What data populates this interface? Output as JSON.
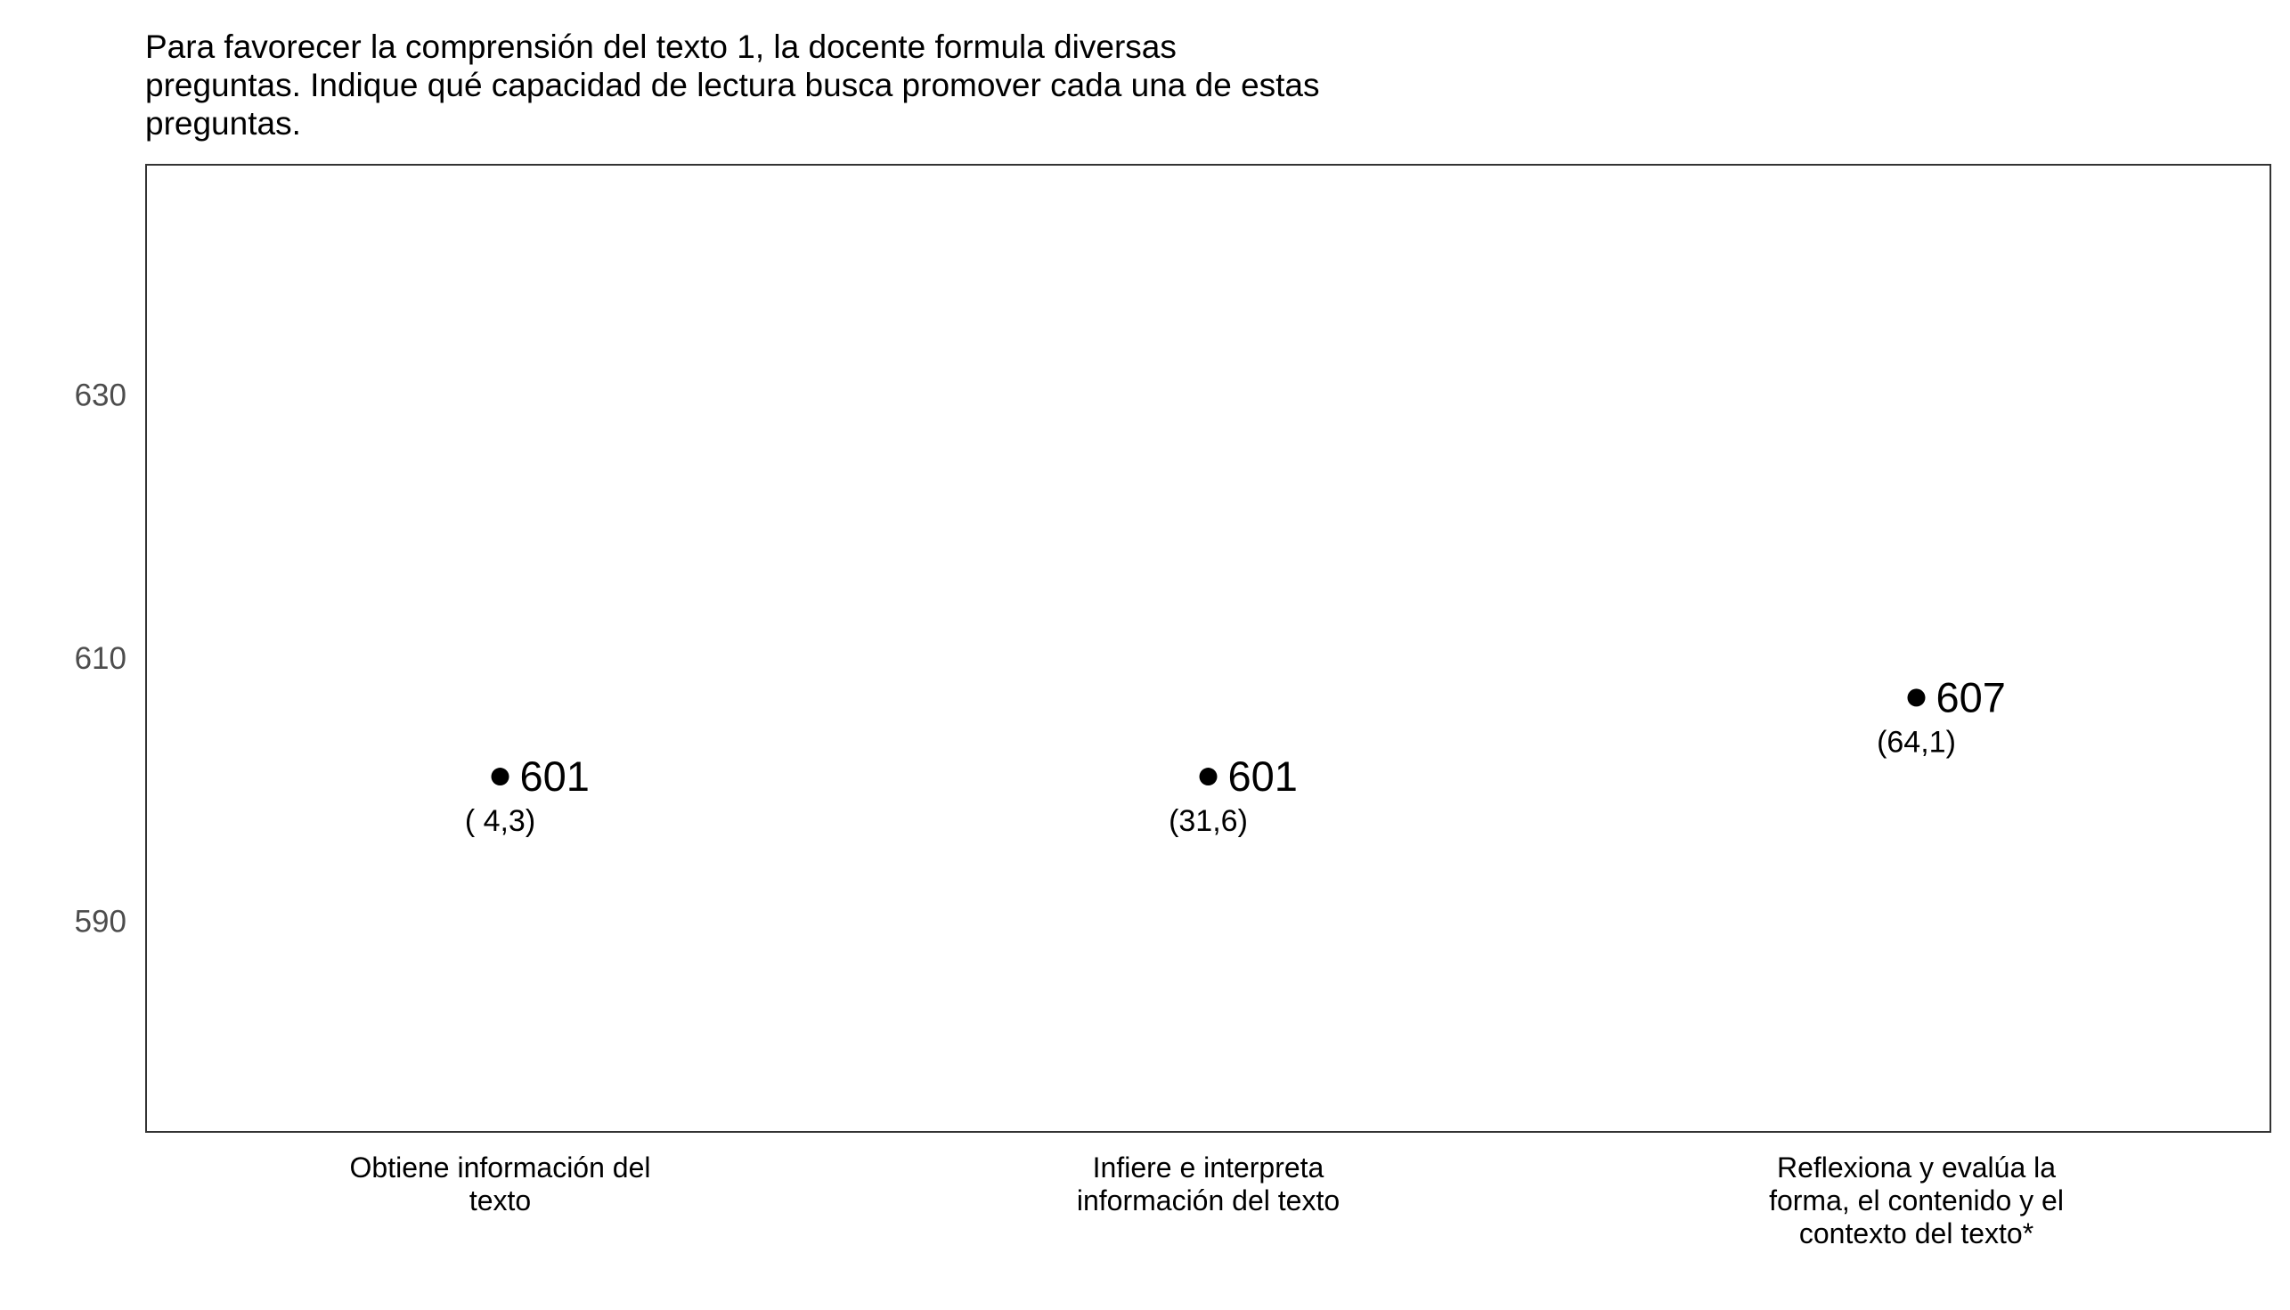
{
  "chart_data": {
    "type": "scatter",
    "title_lines": [
      "Para favorecer la comprensión del texto 1, la docente formula diversas",
      "preguntas. Indique qué capacidad de lectura busca promover cada una de estas",
      "preguntas."
    ],
    "categories": [
      [
        "Obtiene información del",
        "texto"
      ],
      [
        "Infiere e interpreta",
        "información del texto"
      ],
      [
        "Reflexiona y evalúa la",
        "forma, el contenido y el",
        "contexto del texto*"
      ]
    ],
    "values": [
      601,
      601,
      607
    ],
    "value_labels": [
      "601",
      "601",
      "607"
    ],
    "n_labels": [
      "( 4,3)",
      "(31,6)",
      "(64,1)"
    ],
    "y_ticks": [
      590,
      610,
      630
    ],
    "ylim": [
      574,
      647.5
    ],
    "grid": false,
    "legend": "none",
    "colors": {
      "point": "#000000",
      "frame": "#333333",
      "tick_text": "#4d4d4d",
      "background": "#ffffff"
    }
  }
}
